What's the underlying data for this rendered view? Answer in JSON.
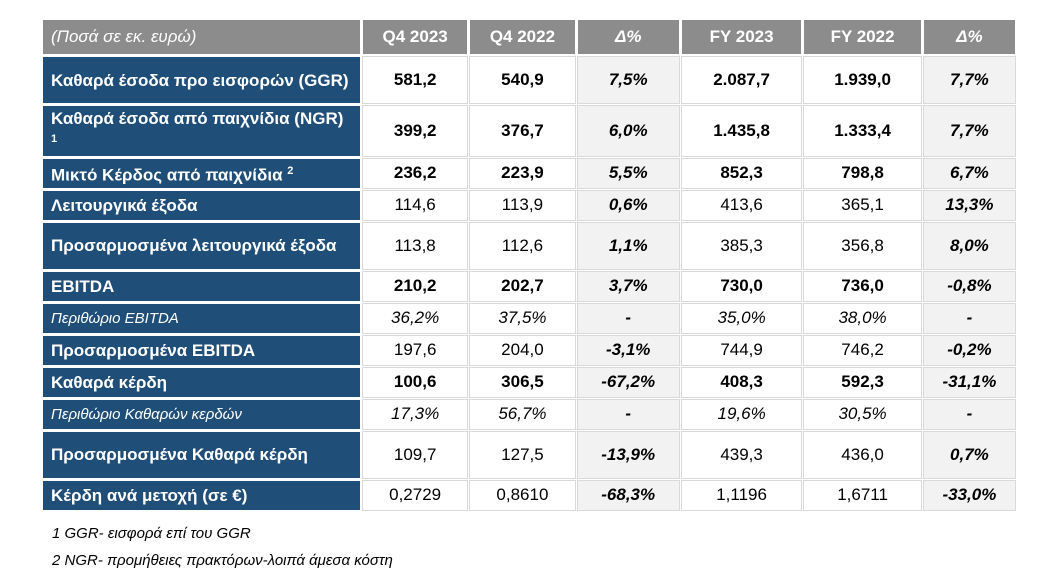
{
  "header": [
    "(Ποσά σε εκ. ευρώ)",
    "Q4 2023",
    "Q4 2022",
    "Δ%",
    "FY 2023",
    "FY 2022",
    "Δ%"
  ],
  "rows": [
    {
      "label": "Καθαρά έσοδα προ εισφορών (GGR)",
      "sup": "",
      "style": "bold",
      "values": [
        "581,2",
        "540,9",
        "7,5%",
        "2.087,7",
        "1.939,0",
        "7,7%"
      ]
    },
    {
      "label": "Καθαρά έσοδα από παιχνίδια (NGR)",
      "sup": "1",
      "style": "bold",
      "values": [
        "399,2",
        "376,7",
        "6,0%",
        "1.435,8",
        "1.333,4",
        "7,7%"
      ]
    },
    {
      "label": "Μικτό Κέρδος από παιχνίδια",
      "sup": "2",
      "style": "bold",
      "values": [
        "236,2",
        "223,9",
        "5,5%",
        "852,3",
        "798,8",
        "6,7%"
      ]
    },
    {
      "label": "Λειτουργικά έξοδα",
      "sup": "",
      "style": "normal",
      "values": [
        "114,6",
        "113,9",
        "0,6%",
        "413,6",
        "365,1",
        "13,3%"
      ]
    },
    {
      "label": "Προσαρμοσμένα λειτουργικά έξοδα",
      "sup": "",
      "style": "normal",
      "values": [
        "113,8",
        "112,6",
        "1,1%",
        "385,3",
        "356,8",
        "8,0%"
      ]
    },
    {
      "label": "EBITDA",
      "sup": "",
      "style": "bold",
      "values": [
        "210,2",
        "202,7",
        "3,7%",
        "730,0",
        "736,0",
        "-0,8%"
      ]
    },
    {
      "label": "Περιθώριο EBITDA",
      "sup": "",
      "style": "italic",
      "values": [
        "36,2%",
        "37,5%",
        "-",
        "35,0%",
        "38,0%",
        "-"
      ]
    },
    {
      "label": "Προσαρμοσμένα EBITDA",
      "sup": "",
      "style": "normal",
      "values": [
        "197,6",
        "204,0",
        "-3,1%",
        "744,9",
        "746,2",
        "-0,2%"
      ]
    },
    {
      "label": "Καθαρά κέρδη",
      "sup": "",
      "style": "bold",
      "values": [
        "100,6",
        "306,5",
        "-67,2%",
        "408,3",
        "592,3",
        "-31,1%"
      ]
    },
    {
      "label": "Περιθώριο Καθαρών κερδών",
      "sup": "",
      "style": "italic",
      "values": [
        "17,3%",
        "56,7%",
        "-",
        "19,6%",
        "30,5%",
        "-"
      ]
    },
    {
      "label": "Προσαρμοσμένα Καθαρά κέρδη",
      "sup": "",
      "style": "normal",
      "values": [
        "109,7",
        "127,5",
        "-13,9%",
        "439,3",
        "436,0",
        "0,7%"
      ]
    },
    {
      "label": "Κέρδη ανά μετοχή (σε €)",
      "sup": "",
      "style": "normal",
      "values": [
        "0,2729",
        "0,8610",
        "-68,3%",
        "1,1196",
        "1,6711",
        "-33,0%"
      ]
    }
  ],
  "notes": [
    "1 GGR- εισφορά επί του GGR",
    "2 NGR- προμήθειες πρακτόρων-λοιπά άμεσα κόστη"
  ],
  "colors": {
    "label_bg": "#1f4e79",
    "header_bg": "#8c8c8c",
    "pct_bg": "#f2f2f2"
  }
}
